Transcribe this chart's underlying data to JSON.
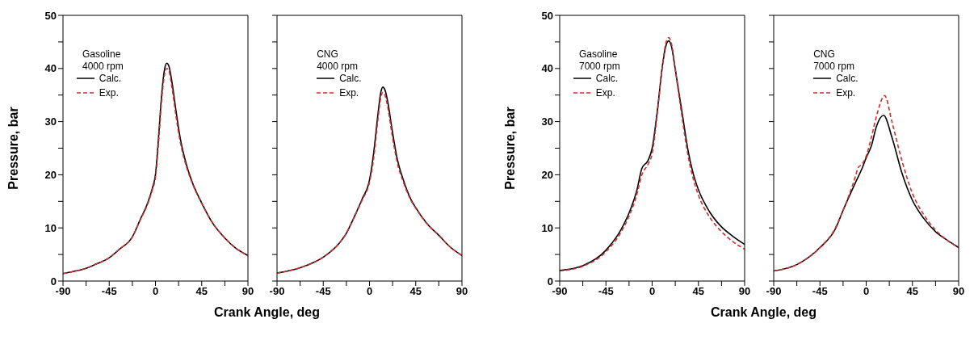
{
  "chart_data": [
    {
      "type": "line",
      "ylabel": "Pressure, bar",
      "xlabel": "Crank Angle, deg",
      "annotations": [
        "Gasoline\n4000 rpm"
      ],
      "xlim": [
        -90,
        90
      ],
      "xticks": [
        -90,
        {
          "value": -67.5,
          "label": null
        },
        -45,
        {
          "value": -22.5,
          "label": null
        },
        0,
        {
          "value": 22.5,
          "label": null
        },
        45,
        {
          "value": 67.5,
          "label": null
        },
        90
      ],
      "ylim": [
        0,
        50
      ],
      "yticks": [
        0,
        {
          "value": 5,
          "label": null
        },
        10,
        {
          "value": 15,
          "label": null
        },
        20,
        {
          "value": 25,
          "label": null
        },
        30,
        {
          "value": 35,
          "label": null
        },
        40,
        {
          "value": 45,
          "label": null
        },
        50
      ],
      "legend": "top left",
      "series": [
        {
          "name": "Calc.",
          "color": "#000000",
          "line_style": "solid",
          "x": [
            -90,
            -75,
            -67.5,
            -60,
            -45,
            -35,
            -22.5,
            -15,
            -7,
            -3,
            0,
            3,
            6,
            9,
            11,
            13,
            16,
            20,
            24,
            30,
            36,
            45,
            56,
            67.5,
            78,
            90
          ],
          "values": [
            1.4,
            2,
            2.4,
            3,
            4.4,
            6,
            8.3,
            11.5,
            15,
            17.5,
            20,
            27,
            35,
            40,
            41,
            40.5,
            37.5,
            32,
            27,
            22,
            18.5,
            14.7,
            10.8,
            8.1,
            6.2,
            4.8
          ]
        },
        {
          "name": "Exp.",
          "color": "#d03030",
          "line_style": "dashed",
          "x": [
            -90,
            -75,
            -67.5,
            -60,
            -45,
            -35,
            -22.5,
            -15,
            -7,
            -3,
            0,
            3,
            6,
            9,
            11,
            13,
            16,
            20,
            24,
            30,
            36,
            45,
            56,
            67.5,
            78,
            90
          ],
          "values": [
            1.4,
            2,
            2.4,
            3,
            4.4,
            6,
            8.3,
            11.4,
            14.8,
            17.2,
            19.5,
            26,
            34,
            39,
            40,
            39.6,
            36.5,
            31,
            26.3,
            21.6,
            18.3,
            14.6,
            10.8,
            8.1,
            6.2,
            4.8
          ]
        }
      ]
    },
    {
      "type": "line",
      "annotations": [
        "CNG\n4000 rpm"
      ],
      "xlim": [
        -90,
        90
      ],
      "xticks": [
        -90,
        {
          "value": -67.5,
          "label": null
        },
        -45,
        {
          "value": -22.5,
          "label": null
        },
        0,
        {
          "value": 22.5,
          "label": null
        },
        45,
        {
          "value": 67.5,
          "label": null
        },
        90
      ],
      "ylim": [
        0,
        50
      ],
      "yticks": [
        0,
        {
          "value": 5,
          "label": null
        },
        10,
        {
          "value": 15,
          "label": null
        },
        20,
        {
          "value": 25,
          "label": null
        },
        30,
        {
          "value": 35,
          "label": null
        },
        40,
        {
          "value": 45,
          "label": null
        },
        50
      ],
      "tick_labels": "x",
      "legend": "top left",
      "series": [
        {
          "name": "Calc.",
          "color": "#000000",
          "line_style": "solid",
          "x": [
            -90,
            -67.5,
            -45,
            -30,
            -22.5,
            -15,
            -7,
            0,
            4,
            8,
            11,
            13,
            15,
            18,
            22,
            27,
            33,
            40,
            45,
            56,
            67.5,
            78,
            90
          ],
          "values": [
            1.5,
            2.5,
            4.5,
            7,
            9,
            12,
            15.5,
            19,
            24,
            31,
            35.5,
            36.5,
            36,
            33.5,
            28.5,
            23,
            19,
            15.5,
            13.8,
            10.8,
            8.6,
            6.5,
            4.8
          ]
        },
        {
          "name": "Exp.",
          "color": "#d03030",
          "line_style": "dashed",
          "x": [
            -90,
            -67.5,
            -45,
            -30,
            -22.5,
            -15,
            -7,
            0,
            4,
            8,
            11,
            13,
            15,
            18,
            22,
            27,
            33,
            40,
            45,
            56,
            67.5,
            78,
            90
          ],
          "values": [
            1.5,
            2.5,
            4.5,
            7,
            9,
            12,
            15.3,
            18.6,
            23,
            30,
            34.5,
            35.5,
            35,
            32.5,
            27.5,
            22.3,
            18.6,
            15.3,
            13.7,
            10.8,
            8.6,
            6.5,
            4.8
          ]
        }
      ]
    },
    {
      "type": "line",
      "ylabel": "Pressure, bar",
      "xlabel": "Crank Angle, deg",
      "annotations": [
        "Gasoline\n7000 rpm"
      ],
      "xlim": [
        -90,
        90
      ],
      "xticks": [
        -90,
        {
          "value": -67.5,
          "label": null
        },
        -45,
        {
          "value": -22.5,
          "label": null
        },
        0,
        {
          "value": 22.5,
          "label": null
        },
        45,
        {
          "value": 67.5,
          "label": null
        },
        90
      ],
      "ylim": [
        0,
        50
      ],
      "yticks": [
        0,
        {
          "value": 5,
          "label": null
        },
        10,
        {
          "value": 15,
          "label": null
        },
        20,
        {
          "value": 25,
          "label": null
        },
        30,
        {
          "value": 35,
          "label": null
        },
        40,
        {
          "value": 45,
          "label": null
        },
        50
      ],
      "legend": "top left",
      "series": [
        {
          "name": "Calc.",
          "color": "#000000",
          "line_style": "solid",
          "x": [
            -90,
            -67.5,
            -45,
            -30,
            -22.5,
            -15,
            -10,
            -4,
            0,
            5,
            10,
            13,
            16,
            19,
            22,
            26,
            30,
            35,
            40,
            45,
            56,
            67.5,
            78,
            90
          ],
          "values": [
            2,
            2.9,
            5.8,
            9.8,
            12.8,
            17,
            21.2,
            22.7,
            25,
            32,
            40.5,
            44,
            45.2,
            44,
            40.5,
            35.5,
            30.6,
            24.5,
            20.2,
            17.2,
            13,
            10.2,
            8.5,
            6.9
          ]
        },
        {
          "name": "Exp.",
          "color": "#d03030",
          "line_style": "dashed",
          "x": [
            -90,
            -67.5,
            -45,
            -30,
            -22.5,
            -15,
            -10,
            -4,
            0,
            5,
            10,
            13,
            16,
            19,
            22,
            26,
            30,
            35,
            40,
            45,
            56,
            67.5,
            78,
            90
          ],
          "values": [
            1.9,
            2.8,
            5.5,
            9.3,
            12.2,
            16.2,
            20,
            22,
            24,
            31.5,
            40.5,
            44.5,
            45.8,
            44.5,
            40.5,
            35,
            29.6,
            23.5,
            19.2,
            16.2,
            12,
            9.3,
            7.5,
            6
          ]
        }
      ]
    },
    {
      "type": "line",
      "annotations": [
        "CNG\n7000 rpm"
      ],
      "xlim": [
        -90,
        90
      ],
      "xticks": [
        -90,
        {
          "value": -67.5,
          "label": null
        },
        -45,
        {
          "value": -22.5,
          "label": null
        },
        0,
        {
          "value": 22.5,
          "label": null
        },
        45,
        {
          "value": 67.5,
          "label": null
        },
        90
      ],
      "ylim": [
        0,
        50
      ],
      "yticks": [
        0,
        {
          "value": 5,
          "label": null
        },
        10,
        {
          "value": 15,
          "label": null
        },
        20,
        {
          "value": 25,
          "label": null
        },
        30,
        {
          "value": 35,
          "label": null
        },
        40,
        {
          "value": 45,
          "label": null
        },
        50
      ],
      "tick_labels": "x",
      "legend": "top left",
      "series": [
        {
          "name": "Calc.",
          "color": "#000000",
          "line_style": "solid",
          "x": [
            -90,
            -67.5,
            -45,
            -30,
            -22.5,
            -10,
            -4,
            0,
            5,
            10,
            17,
            25,
            35,
            45,
            56,
            67.5,
            78,
            90
          ],
          "values": [
            1.9,
            3.1,
            6.3,
            9.8,
            13.3,
            18.7,
            21.2,
            23.2,
            25.4,
            29.1,
            31.2,
            27.1,
            20.2,
            15.2,
            11.8,
            9.3,
            7.8,
            6.3
          ]
        },
        {
          "name": "Exp.",
          "color": "#d03030",
          "line_style": "dashed",
          "x": [
            -90,
            -67.5,
            -45,
            -30,
            -22.5,
            -10,
            -8,
            -4,
            0,
            5,
            10,
            18,
            25,
            35,
            45,
            56,
            67.5,
            78,
            90
          ],
          "values": [
            1.9,
            3.1,
            6.3,
            10,
            13.3,
            20,
            21.3,
            22,
            23.5,
            27,
            31,
            34.9,
            30,
            22.5,
            16.5,
            12.5,
            9.6,
            7.8,
            6.3
          ]
        }
      ]
    }
  ]
}
